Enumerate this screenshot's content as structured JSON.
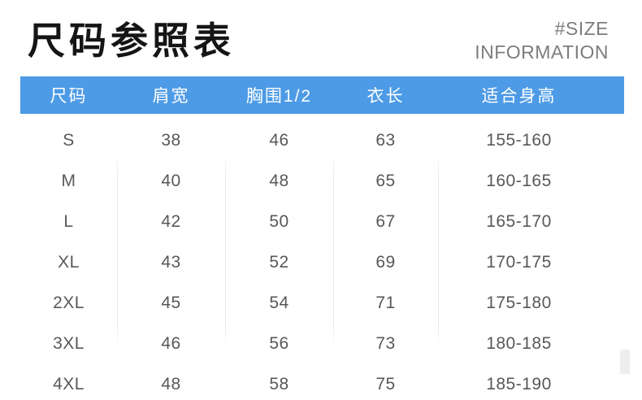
{
  "page": {
    "title": "尺码参照表",
    "subtitle_line1": "#SIZE",
    "subtitle_line2": "INFORMATION"
  },
  "table": {
    "headers": [
      "尺码",
      "肩宽",
      "胸围1/2",
      "衣长",
      "适合身高"
    ],
    "rows": [
      {
        "size": "S",
        "shoulder": "38",
        "chest": "46",
        "length": "63",
        "height": "155-160"
      },
      {
        "size": "M",
        "shoulder": "40",
        "chest": "48",
        "length": "65",
        "height": "160-165"
      },
      {
        "size": "L",
        "shoulder": "42",
        "chest": "50",
        "length": "67",
        "height": "165-170"
      },
      {
        "size": "XL",
        "shoulder": "43",
        "chest": "52",
        "length": "69",
        "height": "170-175"
      },
      {
        "size": "2XL",
        "shoulder": "45",
        "chest": "54",
        "length": "71",
        "height": "175-180"
      },
      {
        "size": "3XL",
        "shoulder": "46",
        "chest": "56",
        "length": "73",
        "height": "180-185"
      },
      {
        "size": "4XL",
        "shoulder": "48",
        "chest": "58",
        "length": "75",
        "height": "185-190"
      }
    ]
  },
  "colors": {
    "header_bg": "#4d9be6",
    "header_text": "#ffffff",
    "title_text": "#151515",
    "subtitle_text": "#7d7d7d",
    "cell_text": "#57585a",
    "divider": "#e9e9e9"
  }
}
